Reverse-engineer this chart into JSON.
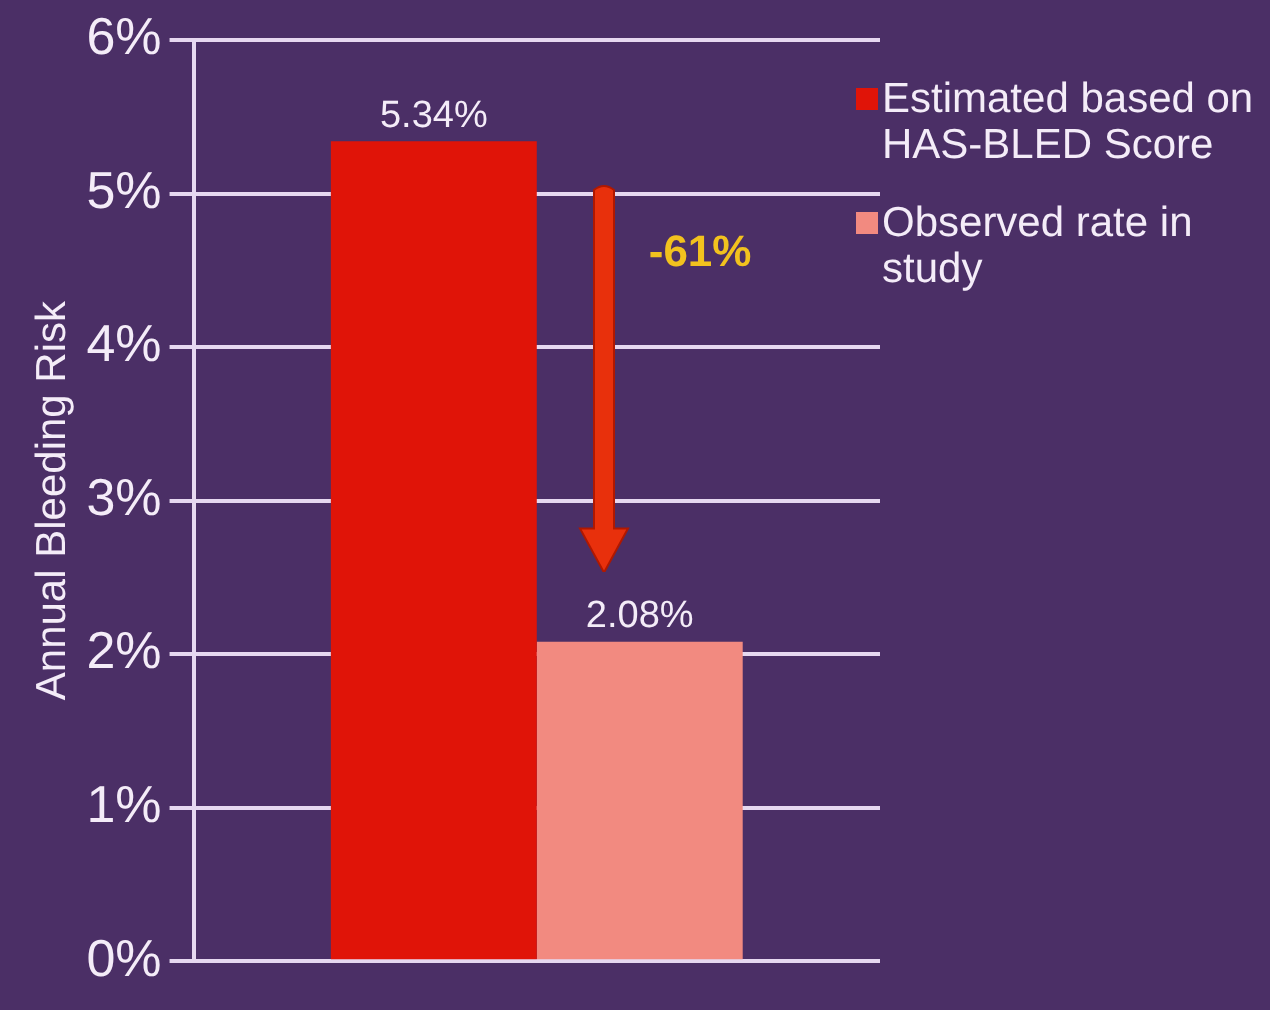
{
  "chart_data": {
    "type": "bar",
    "ylabel": "Annual Bleeding Risk",
    "categories": [
      null
    ],
    "series": [
      {
        "name": "Estimated based on HAS-BLED Score",
        "color": "#e01408",
        "values": [
          5.34
        ],
        "value_labels": [
          "5.34%"
        ]
      },
      {
        "name": "Observed rate in study",
        "color": "#f28a80",
        "values": [
          2.08
        ],
        "value_labels": [
          "2.08%"
        ]
      }
    ],
    "ylim": [
      0,
      6
    ],
    "yticks": [
      {
        "value": 0,
        "label": "0%"
      },
      {
        "value": 1,
        "label": "1%"
      },
      {
        "value": 2,
        "label": "2%"
      },
      {
        "value": 3,
        "label": "3%"
      },
      {
        "value": 4,
        "label": "4%"
      },
      {
        "value": 5,
        "label": "5%"
      },
      {
        "value": 6,
        "label": "6%"
      }
    ],
    "grid": "y",
    "legend": "right",
    "annotations": [
      "-61%"
    ]
  }
}
